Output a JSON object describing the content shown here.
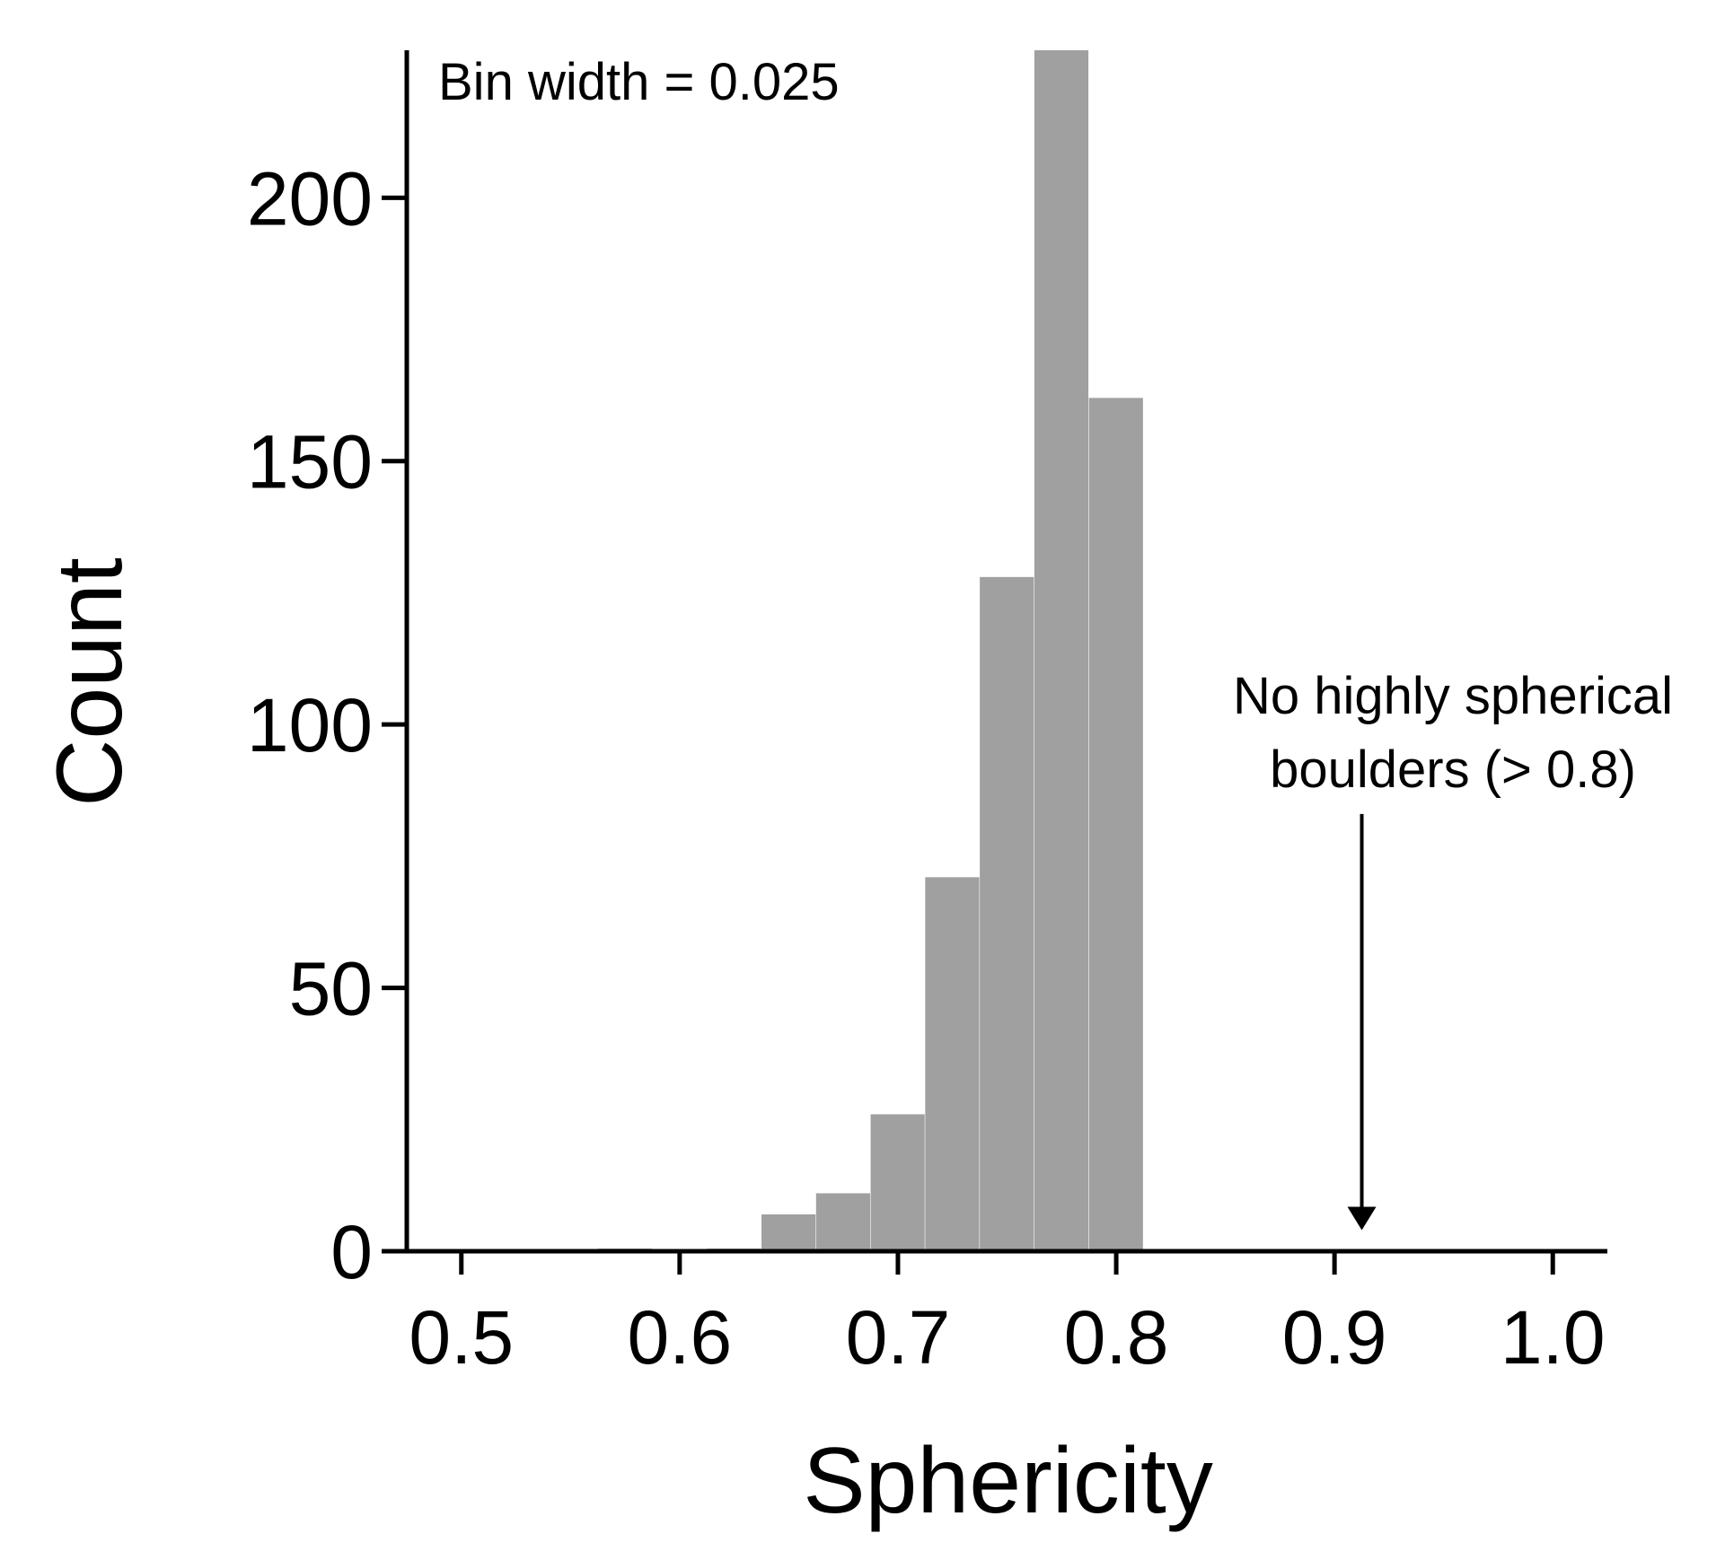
{
  "chart_data": {
    "type": "bar",
    "title": "",
    "xlabel": "Sphericity",
    "ylabel": "Count",
    "bin_width_note": "Bin width = 0.025",
    "bin_width": 0.025,
    "xlim": [
      0.475,
      1.025
    ],
    "ylim": [
      0,
      228
    ],
    "x_ticks": [
      0.5,
      0.6,
      0.7,
      0.8,
      0.9,
      1.0
    ],
    "x_tick_labels": [
      "0.5",
      "0.6",
      "0.7",
      "0.8",
      "0.9",
      "1.0"
    ],
    "y_ticks": [
      0,
      50,
      100,
      150,
      200
    ],
    "y_tick_labels": [
      "0",
      "50",
      "100",
      "150",
      "200"
    ],
    "bins": [
      {
        "start": 0.5625,
        "end": 0.5875,
        "count": 0.5
      },
      {
        "start": 0.5875,
        "end": 0.6125,
        "count": 0
      },
      {
        "start": 0.6125,
        "end": 0.6375,
        "count": 0.5
      },
      {
        "start": 0.6375,
        "end": 0.6625,
        "count": 7
      },
      {
        "start": 0.6625,
        "end": 0.6875,
        "count": 11
      },
      {
        "start": 0.6875,
        "end": 0.7125,
        "count": 26
      },
      {
        "start": 0.7125,
        "end": 0.7375,
        "count": 71
      },
      {
        "start": 0.7375,
        "end": 0.7625,
        "count": 128
      },
      {
        "start": 0.7625,
        "end": 0.7875,
        "count": 228
      },
      {
        "start": 0.7875,
        "end": 0.8125,
        "count": 162
      }
    ],
    "bar_color": "#a0a0a0",
    "grid": false,
    "annotation": {
      "lines": [
        "No highly spherical",
        "boulders (> 0.8)"
      ],
      "arrow_x": 0.9125,
      "arrow_from_y": 83,
      "arrow_to_y": 4
    }
  }
}
